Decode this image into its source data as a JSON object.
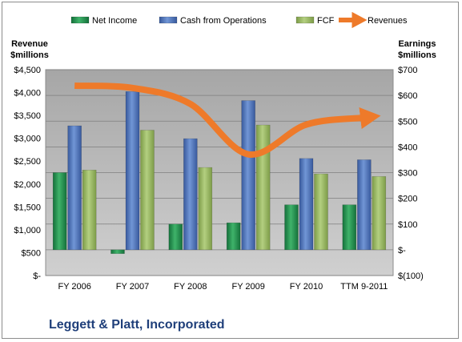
{
  "chart_data": {
    "type": "bar",
    "categories": [
      "FY 2006",
      "FY 2007",
      "FY 2008",
      "FY 2009",
      "FY 2010",
      "TTM 9-2011"
    ],
    "series": [
      {
        "name": "Net Income",
        "axis": "right",
        "type": "bar",
        "color": "#1e8a45",
        "values": [
          300,
          -15,
          100,
          105,
          175,
          175
        ]
      },
      {
        "name": "Cash from Operations",
        "axis": "right",
        "type": "bar",
        "color": "#4a70b8",
        "values": [
          482,
          615,
          432,
          580,
          355,
          350
        ]
      },
      {
        "name": "FCF",
        "axis": "right",
        "type": "bar",
        "color": "#94b55a",
        "values": [
          310,
          465,
          320,
          485,
          295,
          285
        ]
      },
      {
        "name": "Revenues",
        "axis": "left",
        "type": "line",
        "color": "#ee7a2a",
        "values": [
          4150,
          4100,
          3750,
          2650,
          3300,
          3450
        ]
      }
    ],
    "left_axis": {
      "label_line1": "Revenue",
      "label_line2": "$millions",
      "min": 0,
      "max": 4500,
      "ticks": [
        "$-",
        "$500",
        "$1,000",
        "$1,500",
        "$2,000",
        "$2,500",
        "$3,000",
        "$3,500",
        "$4,000",
        "$4,500"
      ]
    },
    "right_axis": {
      "label_line1": "Earnings",
      "label_line2": "$millions",
      "min": -100,
      "max": 700,
      "ticks": [
        "$(100)",
        "$-",
        "$100",
        "$200",
        "$300",
        "$400",
        "$500",
        "$600",
        "$700"
      ]
    },
    "grid": true,
    "legend_position": "top",
    "plot_background": "#c0c0c0"
  },
  "company_title": "Leggett & Platt, Incorporated"
}
